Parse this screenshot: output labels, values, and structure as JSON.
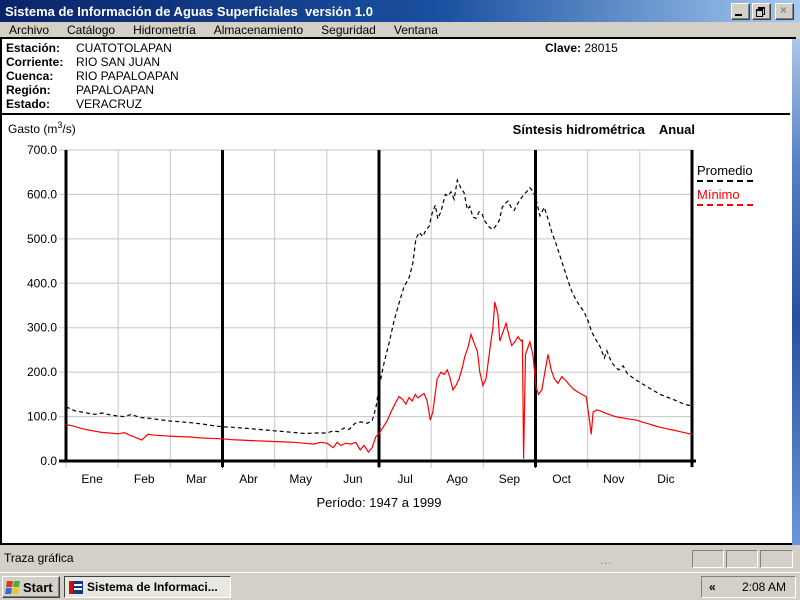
{
  "window": {
    "title": "Sistema de Información de Aguas Superficiales  versión 1.0"
  },
  "icons": {
    "close": "×",
    "tray_chevron": "«"
  },
  "menu": {
    "items": [
      "Archivo",
      "Catálogo",
      "Hidrometría",
      "Almacenamiento",
      "Seguridad",
      "Ventana"
    ]
  },
  "station": {
    "rows": [
      {
        "label": "Estación:",
        "value": "CUATOTOLAPAN"
      },
      {
        "label": "Corriente:",
        "value": "RIO SAN JUAN"
      },
      {
        "label": "Cuenca:",
        "value": "RIO PAPALOAPAN"
      },
      {
        "label": "Región:",
        "value": "PAPALOAPAN"
      },
      {
        "label": "Estado:",
        "value": "VERACRUZ"
      }
    ],
    "clave_label": "Clave:",
    "clave_value": "28015"
  },
  "chart_header": {
    "ylabel_prefix": "Gasto (m",
    "ylabel_sup": "3",
    "ylabel_suffix": "/s)"
  },
  "chart_data": {
    "type": "line",
    "title": "Síntesis hidrométrica",
    "subtitle": "Anual",
    "ylabel": "Gasto (m³/s)",
    "period_label": "Período: 1947 a 1999",
    "categories": [
      "Ene",
      "Feb",
      "Mar",
      "Abr",
      "May",
      "Jun",
      "Jul",
      "Ago",
      "Sep",
      "Oct",
      "Nov",
      "Dic"
    ],
    "ylim": [
      0,
      700
    ],
    "ytick_step": 100,
    "grid": true,
    "legend_position": "right",
    "quarter_dividers_after_month": [
      3,
      6,
      9
    ],
    "x_unit": "fraction_of_year",
    "series": [
      {
        "name": "Promedio",
        "color": "#000000",
        "line_style": "dashed",
        "points": [
          [
            0.0,
            122
          ],
          [
            0.014,
            113
          ],
          [
            0.03,
            109
          ],
          [
            0.046,
            105
          ],
          [
            0.058,
            108
          ],
          [
            0.07,
            104
          ],
          [
            0.083,
            101
          ],
          [
            0.094,
            100
          ],
          [
            0.104,
            105
          ],
          [
            0.118,
            98
          ],
          [
            0.134,
            96
          ],
          [
            0.15,
            93
          ],
          [
            0.166,
            90
          ],
          [
            0.185,
            88
          ],
          [
            0.201,
            86
          ],
          [
            0.219,
            83
          ],
          [
            0.233,
            80
          ],
          [
            0.249,
            77
          ],
          [
            0.265,
            76
          ],
          [
            0.283,
            74
          ],
          [
            0.3,
            72
          ],
          [
            0.318,
            70
          ],
          [
            0.332,
            68
          ],
          [
            0.35,
            66
          ],
          [
            0.366,
            64
          ],
          [
            0.382,
            62
          ],
          [
            0.398,
            63
          ],
          [
            0.417,
            63
          ],
          [
            0.427,
            68
          ],
          [
            0.435,
            66
          ],
          [
            0.444,
            74
          ],
          [
            0.452,
            71
          ],
          [
            0.462,
            85
          ],
          [
            0.471,
            88
          ],
          [
            0.481,
            85
          ],
          [
            0.489,
            90
          ],
          [
            0.495,
            120
          ],
          [
            0.5,
            165
          ],
          [
            0.508,
            220
          ],
          [
            0.516,
            265
          ],
          [
            0.524,
            315
          ],
          [
            0.532,
            355
          ],
          [
            0.54,
            392
          ],
          [
            0.548,
            412
          ],
          [
            0.554,
            445
          ],
          [
            0.559,
            500
          ],
          [
            0.564,
            515
          ],
          [
            0.57,
            505
          ],
          [
            0.575,
            520
          ],
          [
            0.58,
            528
          ],
          [
            0.585,
            558
          ],
          [
            0.59,
            576
          ],
          [
            0.594,
            545
          ],
          [
            0.599,
            562
          ],
          [
            0.606,
            600
          ],
          [
            0.61,
            597
          ],
          [
            0.615,
            606
          ],
          [
            0.62,
            589
          ],
          [
            0.625,
            632
          ],
          [
            0.631,
            614
          ],
          [
            0.636,
            604
          ],
          [
            0.641,
            566
          ],
          [
            0.645,
            573
          ],
          [
            0.65,
            549
          ],
          [
            0.655,
            546
          ],
          [
            0.66,
            561
          ],
          [
            0.665,
            555
          ],
          [
            0.669,
            540
          ],
          [
            0.676,
            527
          ],
          [
            0.681,
            521
          ],
          [
            0.685,
            526
          ],
          [
            0.692,
            541
          ],
          [
            0.697,
            571
          ],
          [
            0.701,
            579
          ],
          [
            0.706,
            585
          ],
          [
            0.711,
            571
          ],
          [
            0.716,
            564
          ],
          [
            0.72,
            576
          ],
          [
            0.727,
            591
          ],
          [
            0.732,
            601
          ],
          [
            0.736,
            606
          ],
          [
            0.741,
            615
          ],
          [
            0.746,
            607
          ],
          [
            0.751,
            589
          ],
          [
            0.757,
            552
          ],
          [
            0.764,
            571
          ],
          [
            0.77,
            545
          ],
          [
            0.776,
            515
          ],
          [
            0.783,
            488
          ],
          [
            0.789,
            462
          ],
          [
            0.796,
            432
          ],
          [
            0.802,
            405
          ],
          [
            0.808,
            382
          ],
          [
            0.815,
            362
          ],
          [
            0.821,
            349
          ],
          [
            0.828,
            335
          ],
          [
            0.834,
            315
          ],
          [
            0.84,
            290
          ],
          [
            0.847,
            272
          ],
          [
            0.853,
            258
          ],
          [
            0.86,
            232
          ],
          [
            0.864,
            248
          ],
          [
            0.871,
            224
          ],
          [
            0.877,
            212
          ],
          [
            0.883,
            205
          ],
          [
            0.89,
            214
          ],
          [
            0.896,
            198
          ],
          [
            0.903,
            190
          ],
          [
            0.909,
            184
          ],
          [
            0.917,
            177
          ],
          [
            0.925,
            170
          ],
          [
            0.933,
            163
          ],
          [
            0.943,
            155
          ],
          [
            0.952,
            148
          ],
          [
            0.962,
            143
          ],
          [
            0.971,
            138
          ],
          [
            0.981,
            132
          ],
          [
            0.99,
            127
          ],
          [
            1.0,
            124
          ]
        ]
      },
      {
        "name": "Mínimo",
        "color": "#ff0000",
        "line_style": "solid",
        "points": [
          [
            0.0,
            82
          ],
          [
            0.011,
            79
          ],
          [
            0.022,
            74
          ],
          [
            0.035,
            70
          ],
          [
            0.046,
            67
          ],
          [
            0.059,
            64
          ],
          [
            0.07,
            63
          ],
          [
            0.083,
            61
          ],
          [
            0.093,
            64
          ],
          [
            0.102,
            58
          ],
          [
            0.113,
            52
          ],
          [
            0.121,
            47
          ],
          [
            0.131,
            60
          ],
          [
            0.142,
            58
          ],
          [
            0.155,
            57
          ],
          [
            0.166,
            56
          ],
          [
            0.182,
            55
          ],
          [
            0.198,
            54
          ],
          [
            0.214,
            52
          ],
          [
            0.23,
            51
          ],
          [
            0.249,
            50
          ],
          [
            0.265,
            48
          ],
          [
            0.281,
            47
          ],
          [
            0.297,
            46
          ],
          [
            0.313,
            45
          ],
          [
            0.332,
            44
          ],
          [
            0.348,
            43
          ],
          [
            0.364,
            42
          ],
          [
            0.38,
            40
          ],
          [
            0.396,
            38
          ],
          [
            0.406,
            42
          ],
          [
            0.417,
            40
          ],
          [
            0.427,
            30
          ],
          [
            0.433,
            42
          ],
          [
            0.439,
            35
          ],
          [
            0.447,
            40
          ],
          [
            0.455,
            38
          ],
          [
            0.463,
            42
          ],
          [
            0.47,
            25
          ],
          [
            0.476,
            35
          ],
          [
            0.483,
            20
          ],
          [
            0.489,
            30
          ],
          [
            0.495,
            55
          ],
          [
            0.5,
            62
          ],
          [
            0.506,
            75
          ],
          [
            0.513,
            90
          ],
          [
            0.519,
            110
          ],
          [
            0.526,
            130
          ],
          [
            0.532,
            145
          ],
          [
            0.538,
            138
          ],
          [
            0.543,
            128
          ],
          [
            0.548,
            143
          ],
          [
            0.553,
            135
          ],
          [
            0.558,
            150
          ],
          [
            0.562,
            142
          ],
          [
            0.567,
            147
          ],
          [
            0.572,
            152
          ],
          [
            0.577,
            135
          ],
          [
            0.582,
            92
          ],
          [
            0.586,
            110
          ],
          [
            0.593,
            185
          ],
          [
            0.599,
            200
          ],
          [
            0.604,
            195
          ],
          [
            0.609,
            205
          ],
          [
            0.613,
            190
          ],
          [
            0.618,
            160
          ],
          [
            0.623,
            170
          ],
          [
            0.628,
            185
          ],
          [
            0.633,
            210
          ],
          [
            0.637,
            235
          ],
          [
            0.642,
            255
          ],
          [
            0.647,
            285
          ],
          [
            0.652,
            265
          ],
          [
            0.657,
            248
          ],
          [
            0.661,
            200
          ],
          [
            0.666,
            170
          ],
          [
            0.671,
            185
          ],
          [
            0.677,
            250
          ],
          [
            0.682,
            300
          ],
          [
            0.685,
            358
          ],
          [
            0.69,
            330
          ],
          [
            0.693,
            270
          ],
          [
            0.698,
            290
          ],
          [
            0.703,
            310
          ],
          [
            0.708,
            280
          ],
          [
            0.712,
            260
          ],
          [
            0.717,
            268
          ],
          [
            0.722,
            280
          ],
          [
            0.727,
            270
          ],
          [
            0.729,
            272
          ],
          [
            0.731,
            5
          ],
          [
            0.734,
            240
          ],
          [
            0.741,
            268
          ],
          [
            0.746,
            238
          ],
          [
            0.751,
            165
          ],
          [
            0.755,
            150
          ],
          [
            0.76,
            160
          ],
          [
            0.765,
            200
          ],
          [
            0.77,
            240
          ],
          [
            0.775,
            205
          ],
          [
            0.78,
            185
          ],
          [
            0.786,
            175
          ],
          [
            0.792,
            190
          ],
          [
            0.799,
            180
          ],
          [
            0.805,
            170
          ],
          [
            0.812,
            160
          ],
          [
            0.818,
            155
          ],
          [
            0.824,
            150
          ],
          [
            0.831,
            145
          ],
          [
            0.836,
            95
          ],
          [
            0.839,
            60
          ],
          [
            0.842,
            110
          ],
          [
            0.848,
            115
          ],
          [
            0.855,
            112
          ],
          [
            0.861,
            108
          ],
          [
            0.869,
            104
          ],
          [
            0.877,
            100
          ],
          [
            0.885,
            98
          ],
          [
            0.893,
            96
          ],
          [
            0.901,
            94
          ],
          [
            0.911,
            92
          ],
          [
            0.92,
            88
          ],
          [
            0.93,
            84
          ],
          [
            0.939,
            80
          ],
          [
            0.949,
            76
          ],
          [
            0.958,
            73
          ],
          [
            0.968,
            70
          ],
          [
            0.978,
            67
          ],
          [
            0.987,
            64
          ],
          [
            1.0,
            60
          ]
        ]
      }
    ]
  },
  "statusbar": {
    "text": "Traza gráfica"
  },
  "taskbar": {
    "start_label": "Start",
    "task_label": "Sistema de Informaci...",
    "clock": "2:08 AM"
  },
  "colors": {
    "titlebar_start": "#0a246a",
    "titlebar_end": "#a6caf0",
    "chrome": "#d4d0c8",
    "grid": "#c6c6c6",
    "promedio": "#000000",
    "minimo": "#ff0000"
  }
}
